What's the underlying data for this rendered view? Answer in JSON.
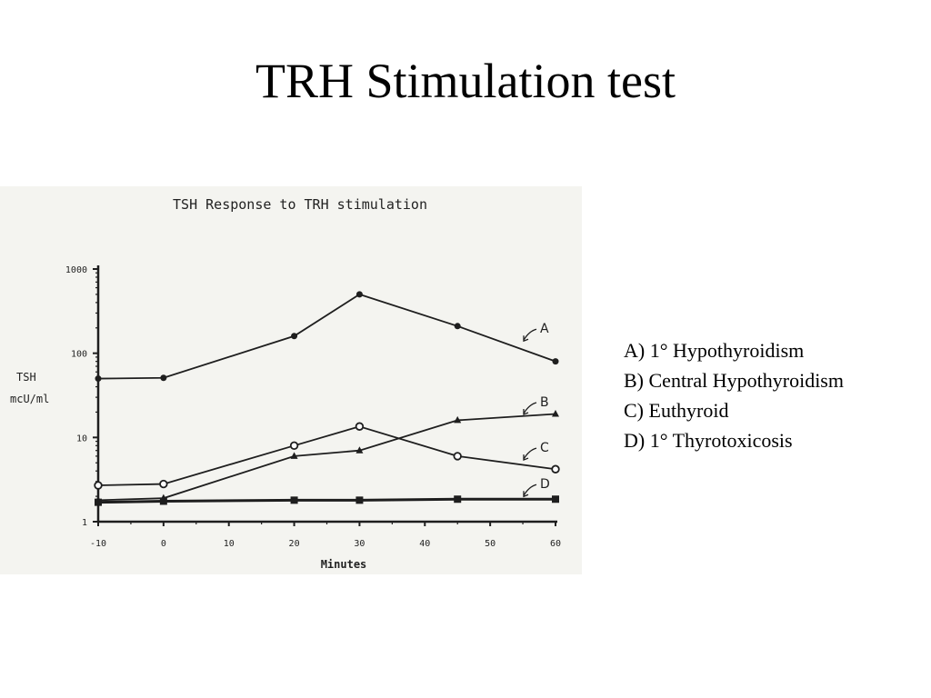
{
  "slide": {
    "title": "TRH Stimulation test"
  },
  "legend": {
    "items": [
      "A) 1° Hypothyroidism",
      "B) Central Hypothyroidism",
      "C) Euthyroid",
      "D) 1° Thyrotoxicosis"
    ]
  },
  "chart_data": {
    "type": "line",
    "title": "TSH Response to TRH stimulation",
    "xlabel": "Minutes",
    "ylabel": [
      "TSH",
      "mcU/ml"
    ],
    "yscale": "log",
    "xlim": [
      -10,
      60
    ],
    "ylim": [
      1,
      1000
    ],
    "x_ticks": [
      -10,
      0,
      10,
      20,
      30,
      40,
      50,
      60
    ],
    "y_ticks": [
      1,
      10,
      100,
      1000
    ],
    "grid": false,
    "series": [
      {
        "name": "A",
        "marker": "filled-circle",
        "points": [
          [
            -10,
            50
          ],
          [
            0,
            51
          ],
          [
            20,
            160
          ],
          [
            30,
            500
          ],
          [
            45,
            210
          ],
          [
            60,
            80
          ]
        ]
      },
      {
        "name": "B",
        "marker": "filled-triangle",
        "points": [
          [
            -10,
            1.8
          ],
          [
            0,
            1.9
          ],
          [
            20,
            6
          ],
          [
            30,
            7
          ],
          [
            45,
            16
          ],
          [
            60,
            19
          ]
        ]
      },
      {
        "name": "C",
        "marker": "open-circle",
        "points": [
          [
            -10,
            2.7
          ],
          [
            0,
            2.8
          ],
          [
            20,
            8
          ],
          [
            30,
            13.5
          ],
          [
            45,
            6
          ],
          [
            60,
            4.2
          ]
        ]
      },
      {
        "name": "D",
        "marker": "filled-square",
        "points": [
          [
            -10,
            1.7
          ],
          [
            0,
            1.75
          ],
          [
            20,
            1.8
          ],
          [
            30,
            1.8
          ],
          [
            45,
            1.85
          ],
          [
            60,
            1.85
          ]
        ]
      }
    ]
  }
}
